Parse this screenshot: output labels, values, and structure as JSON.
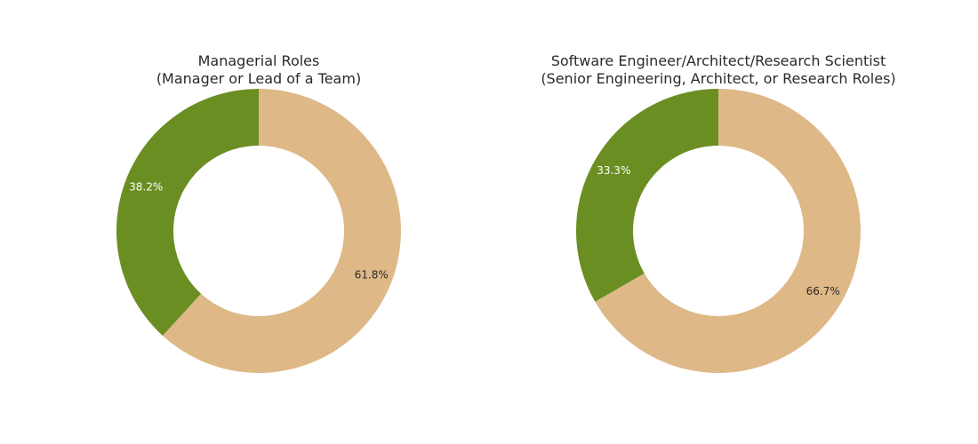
{
  "chart_data": [
    {
      "type": "pie",
      "hole": true,
      "title": "Managerial Roles",
      "subtitle": "(Manager or Lead of a Team)",
      "slices": [
        {
          "value": 61.8,
          "label": "61.8%",
          "color": "#DEB887",
          "text_color": "#2a2a2a"
        },
        {
          "value": 38.2,
          "label": "38.2%",
          "color": "#6B8E23",
          "text_color": "#ffffff"
        }
      ]
    },
    {
      "type": "pie",
      "hole": true,
      "title": "Software Engineer/Architect/Research Scientist",
      "subtitle": "(Senior Engineering, Architect, or Research Roles)",
      "slices": [
        {
          "value": 66.7,
          "label": "66.7%",
          "color": "#DEB887",
          "text_color": "#2a2a2a"
        },
        {
          "value": 33.3,
          "label": "33.3%",
          "color": "#6B8E23",
          "text_color": "#ffffff"
        }
      ]
    }
  ]
}
